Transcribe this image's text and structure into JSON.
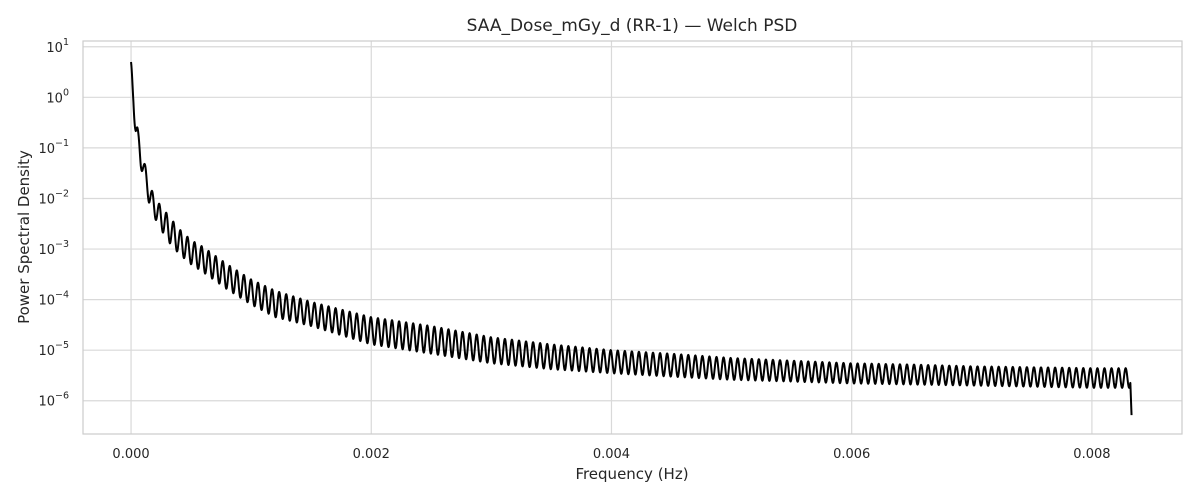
{
  "chart_data": {
    "type": "line",
    "title": "SAA_Dose_mGy_d (RR-1) — Welch PSD",
    "xlabel": "Frequency (Hz)",
    "ylabel": "Power Spectral Density",
    "yscale": "log",
    "xlim": [
      -0.0004,
      0.00875
    ],
    "ylim": [
      2.2e-07,
      13.0
    ],
    "grid": true,
    "line_color": "#000000",
    "x_ticks": [
      0.0,
      0.002,
      0.004,
      0.006,
      0.008
    ],
    "x_tick_labels": [
      "0.000",
      "0.002",
      "0.004",
      "0.006",
      "0.008"
    ],
    "y_ticks": [
      1e-06,
      1e-05,
      0.0001,
      0.001,
      0.01,
      0.1,
      1.0,
      10.0
    ],
    "y_tick_labels": [
      {
        "base": "10",
        "exp": "−6"
      },
      {
        "base": "10",
        "exp": "−5"
      },
      {
        "base": "10",
        "exp": "−4"
      },
      {
        "base": "10",
        "exp": "−3"
      },
      {
        "base": "10",
        "exp": "−2"
      },
      {
        "base": "10",
        "exp": "−1"
      },
      {
        "base": "10",
        "exp": "0"
      },
      {
        "base": "10",
        "exp": "1"
      }
    ],
    "series": [
      {
        "x": [
          0.0,
          2e-05,
          4e-05,
          6e-05,
          8e-05,
          0.0001,
          0.00015,
          0.0002,
          0.0003,
          0.0004,
          0.0005,
          0.0006,
          0.0008,
          0.001,
          0.0012,
          0.0015,
          0.002,
          0.0025,
          0.003,
          0.0035,
          0.004,
          0.0045,
          0.005,
          0.0055,
          0.006,
          0.0065,
          0.007,
          0.0075,
          0.008,
          0.00832,
          0.00833
        ],
        "upper": [
          5.0,
          2.0,
          0.5,
          0.2,
          0.1,
          0.07,
          0.02,
          0.01,
          0.005,
          0.0025,
          0.0015,
          0.0011,
          0.0005,
          0.00025,
          0.00015,
          9e-05,
          4.5e-05,
          3e-05,
          1.8e-05,
          1.3e-05,
          1e-05,
          8.5e-06,
          7e-06,
          6.2e-06,
          5.5e-06,
          5.2e-06,
          4.8e-06,
          4.6e-06,
          4.4e-06,
          4.4e-06,
          4.4e-06
        ],
        "lower": [
          1.2,
          0.6,
          0.15,
          0.08,
          0.04,
          0.03,
          0.008,
          0.004,
          0.0015,
          0.0008,
          0.0005,
          0.00035,
          0.00016,
          8e-05,
          4.5e-05,
          3e-05,
          1.3e-05,
          8.5e-06,
          5.5e-06,
          4.2e-06,
          3.5e-06,
          3e-06,
          2.6e-06,
          2.4e-06,
          2.2e-06,
          2.1e-06,
          2e-06,
          1.9e-06,
          1.8e-06,
          1.8e-06,
          5.2e-07
        ]
      }
    ]
  }
}
